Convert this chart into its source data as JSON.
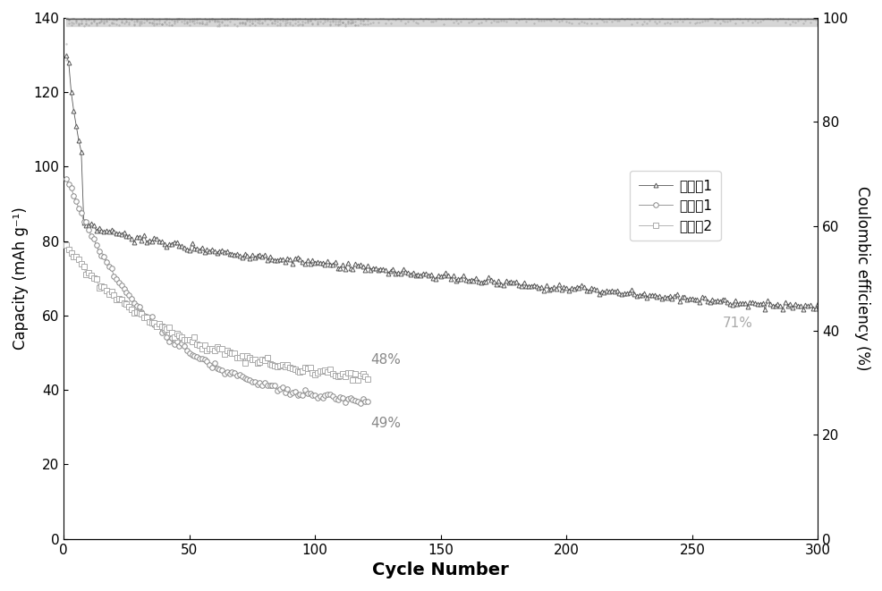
{
  "xlabel": "Cycle Number",
  "ylabel_left": "Capacity (mAh g⁻¹)",
  "ylabel_right": "Coulombic efficiency (%)",
  "xlim": [
    0,
    300
  ],
  "ylim_left": [
    0,
    140
  ],
  "ylim_right": [
    0,
    100
  ],
  "xticks": [
    0,
    50,
    100,
    150,
    200,
    250,
    300
  ],
  "yticks_left": [
    0,
    20,
    40,
    60,
    80,
    100,
    120,
    140
  ],
  "yticks_right": [
    0,
    20,
    40,
    60,
    80,
    100
  ],
  "legend_labels": [
    "实施例1",
    "对比例1",
    "对比例2"
  ],
  "ann_48_x": 122,
  "ann_48_y": 48,
  "ann_49_x": 122,
  "ann_49_y": 31,
  "ann_71_x": 262,
  "ann_71_y": 58,
  "color_1": "#555555",
  "color_2": "#888888",
  "color_3": "#aaaaaa",
  "ce_fill_color": "#888888"
}
